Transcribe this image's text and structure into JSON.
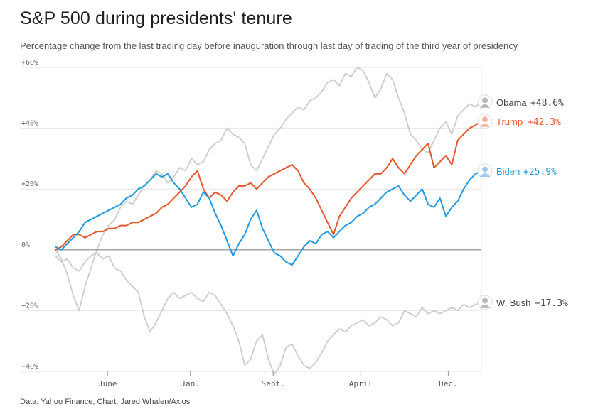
{
  "header": {
    "title": "S&P 500 during presidents' tenure",
    "subtitle": "Percentage change from the last trading day before inauguration through last day of trading of the third year of presidency"
  },
  "footer": {
    "source": "Data: Yahoo Finance; Chart: Jared Whalen/Axios"
  },
  "colors": {
    "trump": "#e8552a",
    "biden": "#1f9ae0",
    "gray": "#cccccc",
    "label_gray": "#444444",
    "zero_line": "#888888",
    "grid": "#e6e6e6"
  },
  "chart_data": {
    "type": "line",
    "title": "S&P 500 during presidents' tenure",
    "xlabel": "",
    "ylabel": "",
    "xlim": [
      0,
      36
    ],
    "ylim": [
      -40,
      60
    ],
    "y_ticks": [
      60,
      40,
      20,
      0,
      -20,
      -40
    ],
    "y_tick_labels": [
      "+60%",
      "+40%",
      "+20%",
      "0%",
      "−20%",
      "−40%"
    ],
    "x_ticks": [
      {
        "value": 4.4,
        "label": "June"
      },
      {
        "value": 11.4,
        "label": "Jan."
      },
      {
        "value": 18.4,
        "label": "Sept."
      },
      {
        "value": 25.8,
        "label": "April"
      },
      {
        "value": 33.2,
        "label": "Dec."
      }
    ],
    "grid": true,
    "series": [
      {
        "name": "Obama",
        "end_label": "+48.6%",
        "highlight": false,
        "x": [
          0,
          0.5,
          1,
          1.5,
          2,
          2.5,
          3,
          3.5,
          4,
          4.5,
          5,
          5.5,
          6,
          6.5,
          7,
          7.5,
          8,
          8.5,
          9,
          9.5,
          10,
          10.5,
          11,
          11.5,
          12,
          12.5,
          13,
          13.5,
          14,
          14.5,
          15,
          15.5,
          16,
          16.5,
          17,
          17.5,
          18,
          18.5,
          19,
          19.5,
          20,
          20.5,
          21,
          21.5,
          22,
          22.5,
          23,
          23.5,
          24,
          24.5,
          25,
          25.5,
          26,
          26.5,
          27,
          27.5,
          28,
          28.5,
          29,
          29.5,
          30,
          30.5,
          31,
          31.5,
          32,
          32.5,
          33,
          33.5,
          34,
          34.5,
          35,
          35.5,
          36
        ],
        "values": [
          0,
          -3,
          -8,
          -15,
          -20,
          -12,
          -6,
          0,
          5,
          8,
          10,
          14,
          16,
          15,
          18,
          21,
          23,
          26,
          25,
          22,
          24,
          27,
          26,
          30,
          28,
          29,
          33,
          35,
          36,
          40,
          38,
          37,
          35,
          28,
          26,
          30,
          34,
          38,
          40,
          43,
          45,
          47,
          46,
          49,
          50,
          52,
          55,
          56,
          54,
          58,
          57,
          60,
          59,
          55,
          50,
          53,
          58,
          56,
          50,
          45,
          38,
          36,
          33,
          32,
          36,
          40,
          42,
          38,
          44,
          46,
          48,
          47,
          48.6
        ]
      },
      {
        "name": "Trump",
        "end_label": "+42.3%",
        "highlight": true,
        "x": [
          0,
          0.5,
          1,
          1.5,
          2,
          2.5,
          3,
          3.5,
          4,
          4.5,
          5,
          5.5,
          6,
          6.5,
          7,
          7.5,
          8,
          8.5,
          9,
          9.5,
          10,
          10.5,
          11,
          11.5,
          12,
          12.5,
          13,
          13.5,
          14,
          14.5,
          15,
          15.5,
          16,
          16.5,
          17,
          17.5,
          18,
          18.5,
          19,
          19.5,
          20,
          20.5,
          21,
          21.5,
          22,
          22.5,
          23,
          23.5,
          24,
          24.5,
          25,
          25.5,
          26,
          26.5,
          27,
          27.5,
          28,
          28.5,
          29,
          29.5,
          30,
          30.5,
          31,
          31.5,
          32,
          32.5,
          33,
          33.5,
          34,
          34.5,
          35,
          35.5,
          36
        ],
        "values": [
          0,
          1,
          3,
          5,
          5,
          4,
          5,
          6,
          6,
          7,
          7,
          8,
          8,
          9,
          9,
          10,
          11,
          12,
          14,
          15,
          17,
          19,
          21,
          24,
          26,
          20,
          17,
          19,
          18,
          16,
          19,
          21,
          21,
          22,
          20,
          22,
          24,
          25,
          26,
          27,
          28,
          26,
          22,
          20,
          17,
          13,
          9,
          5,
          11,
          14,
          17,
          19,
          21,
          23,
          25,
          25,
          27,
          30,
          27,
          25,
          28,
          31,
          33,
          35,
          27,
          29,
          31,
          28,
          36,
          38,
          40,
          41,
          42.3
        ]
      },
      {
        "name": "Biden",
        "end_label": "+25.9%",
        "highlight": true,
        "x": [
          0,
          0.5,
          1,
          1.5,
          2,
          2.5,
          3,
          3.5,
          4,
          4.5,
          5,
          5.5,
          6,
          6.5,
          7,
          7.5,
          8,
          8.5,
          9,
          9.5,
          10,
          10.5,
          11,
          11.5,
          12,
          12.5,
          13,
          13.5,
          14,
          14.5,
          15,
          15.5,
          16,
          16.5,
          17,
          17.5,
          18,
          18.5,
          19,
          19.5,
          20,
          20.5,
          21,
          21.5,
          22,
          22.5,
          23,
          23.5,
          24,
          24.5,
          25,
          25.5,
          26,
          26.5,
          27,
          27.5,
          28,
          28.5,
          29,
          29.5,
          30,
          30.5,
          31,
          31.5,
          32,
          32.5,
          33,
          33.5,
          34,
          34.5,
          35,
          35.5,
          36
        ],
        "values": [
          1,
          0,
          2,
          4,
          6,
          9,
          10,
          11,
          12,
          13,
          14,
          15,
          17,
          18,
          20,
          21,
          23,
          25,
          24,
          25,
          22,
          20,
          17,
          14,
          15,
          19,
          17,
          12,
          8,
          3,
          -2,
          2,
          5,
          10,
          13,
          7,
          3,
          -1,
          -2,
          -4,
          -5,
          -2,
          1,
          3,
          2,
          5,
          6,
          4,
          6,
          8,
          9,
          11,
          12,
          14,
          15,
          17,
          19,
          20,
          21,
          18,
          16,
          18,
          20,
          15,
          14,
          17,
          11,
          14,
          16,
          20,
          23,
          25,
          25.9
        ]
      },
      {
        "name": "W. Bush",
        "end_label": "−17.3%",
        "highlight": false,
        "x": [
          0,
          0.5,
          1,
          1.5,
          2,
          2.5,
          3,
          3.5,
          4,
          4.5,
          5,
          5.5,
          6,
          6.5,
          7,
          7.5,
          8,
          8.5,
          9,
          9.5,
          10,
          10.5,
          11,
          11.5,
          12,
          12.5,
          13,
          13.5,
          14,
          14.5,
          15,
          15.5,
          16,
          16.5,
          17,
          17.5,
          18,
          18.5,
          19,
          19.5,
          20,
          20.5,
          21,
          21.5,
          22,
          22.5,
          23,
          23.5,
          24,
          24.5,
          25,
          25.5,
          26,
          26.5,
          27,
          27.5,
          28,
          28.5,
          29,
          29.5,
          30,
          30.5,
          31,
          31.5,
          32,
          32.5,
          33,
          33.5,
          34,
          34.5,
          35,
          35.5,
          36
        ],
        "values": [
          -2,
          -4,
          -3,
          -6,
          -7,
          -4,
          -2,
          -1,
          -3,
          -2,
          -6,
          -7,
          -10,
          -12,
          -14,
          -22,
          -27,
          -24,
          -20,
          -16,
          -14,
          -16,
          -15,
          -14,
          -16,
          -17,
          -14,
          -15,
          -18,
          -21,
          -25,
          -30,
          -38,
          -36,
          -30,
          -28,
          -36,
          -41,
          -38,
          -32,
          -31,
          -35,
          -38,
          -39,
          -37,
          -34,
          -30,
          -28,
          -26,
          -27,
          -25,
          -24,
          -23,
          -25,
          -24,
          -22,
          -23,
          -25,
          -24,
          -20,
          -21,
          -22,
          -19,
          -21,
          -20,
          -21,
          -20,
          -19,
          -20,
          -18,
          -19,
          -18,
          -17.3
        ]
      }
    ]
  }
}
